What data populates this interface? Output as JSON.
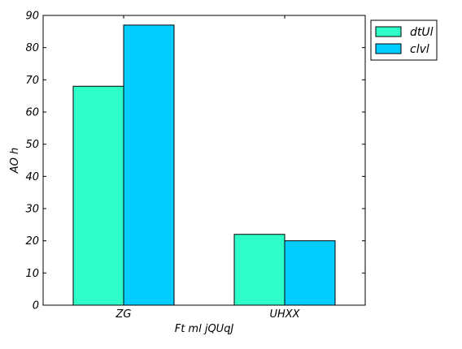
{
  "chart_data": {
    "type": "bar",
    "title": "",
    "xlabel": "Ft ml  jQUqJ",
    "ylabel": "AO h",
    "categories": [
      "ZG",
      "UHXX"
    ],
    "series": [
      {
        "name": "dtUl",
        "color": "#2effc8",
        "values": [
          68,
          22
        ]
      },
      {
        "name": "clvl",
        "color": "#00ccff",
        "values": [
          87,
          20
        ]
      }
    ],
    "ylim": [
      0,
      90
    ],
    "yticks": [
      0,
      10,
      20,
      30,
      40,
      50,
      60,
      70,
      80,
      90
    ],
    "grid": false,
    "legend_position": "outside-top-right"
  }
}
